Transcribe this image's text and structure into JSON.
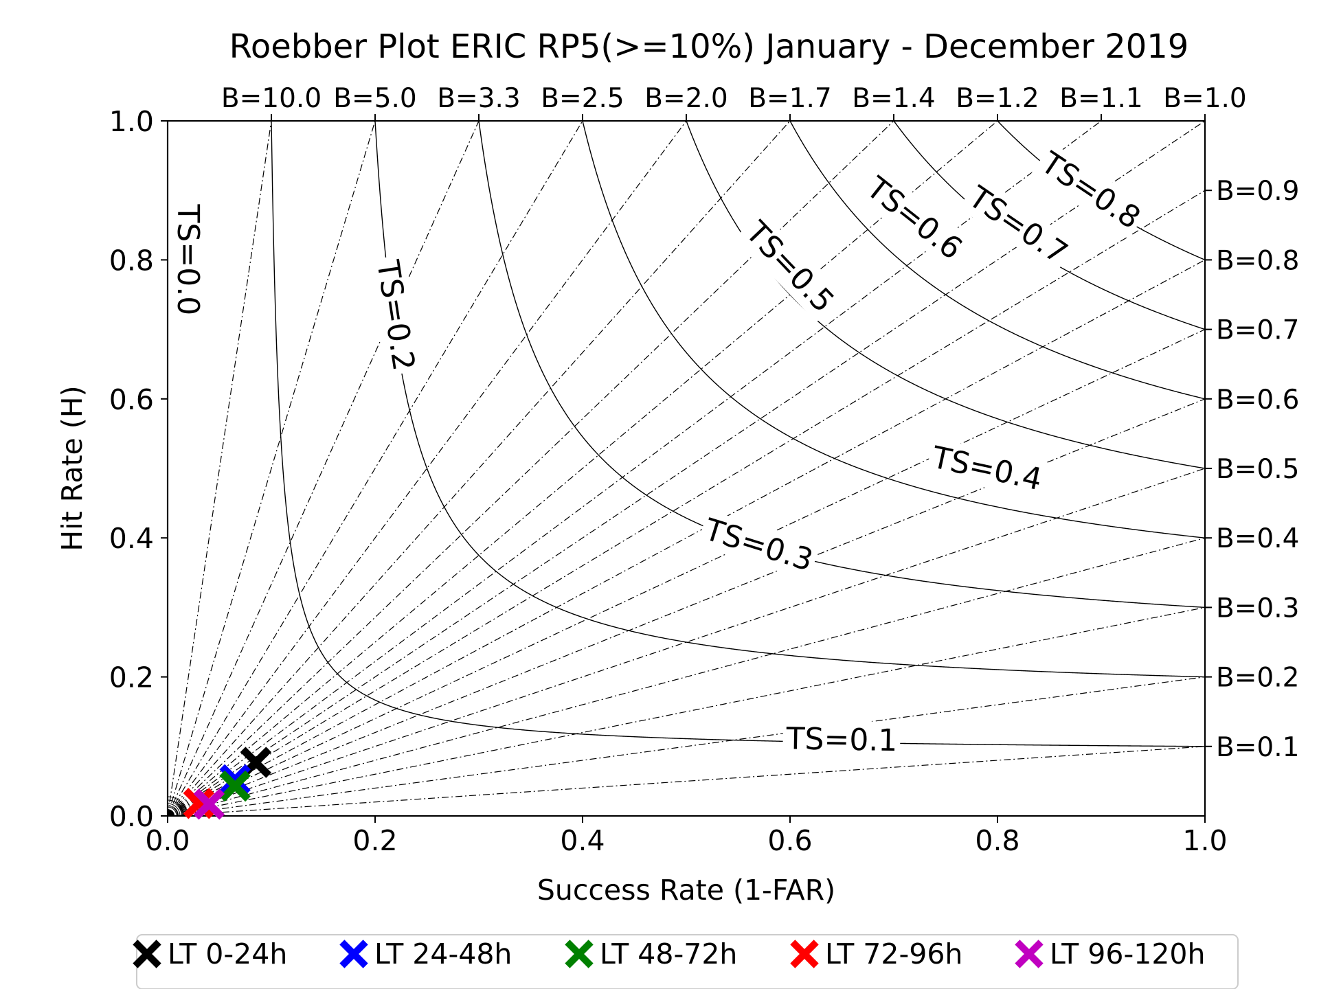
{
  "chart_data": {
    "type": "scatter",
    "title": "Roebber Plot ERIC RP5(>=10%) January - December 2019",
    "xlabel": "Success Rate (1-FAR)",
    "ylabel": "Hit Rate (H)",
    "xlim": [
      0,
      1
    ],
    "ylim": [
      0,
      1
    ],
    "x_ticks": [
      "0.0",
      "0.2",
      "0.4",
      "0.6",
      "0.8",
      "1.0"
    ],
    "y_ticks": [
      "0.0",
      "0.2",
      "0.4",
      "0.6",
      "0.8",
      "1.0"
    ],
    "bias_lines": {
      "top": [
        {
          "label": "B=10.0",
          "value": 10.0
        },
        {
          "label": "B=5.0",
          "value": 5.0
        },
        {
          "label": "B=3.3",
          "value": 3.3333
        },
        {
          "label": "B=2.5",
          "value": 2.5
        },
        {
          "label": "B=2.0",
          "value": 2.0
        },
        {
          "label": "B=1.7",
          "value": 1.6667
        },
        {
          "label": "B=1.4",
          "value": 1.4286
        },
        {
          "label": "B=1.2",
          "value": 1.25
        },
        {
          "label": "B=1.1",
          "value": 1.1111
        },
        {
          "label": "B=1.0",
          "value": 1.0
        }
      ],
      "right": [
        {
          "label": "B=0.9",
          "value": 0.9
        },
        {
          "label": "B=0.8",
          "value": 0.8
        },
        {
          "label": "B=0.7",
          "value": 0.7
        },
        {
          "label": "B=0.6",
          "value": 0.6
        },
        {
          "label": "B=0.5",
          "value": 0.5
        },
        {
          "label": "B=0.4",
          "value": 0.4
        },
        {
          "label": "B=0.3",
          "value": 0.3
        },
        {
          "label": "B=0.2",
          "value": 0.2
        },
        {
          "label": "B=0.1",
          "value": 0.1
        }
      ]
    },
    "ts_contours": [
      {
        "label": "TS=0.0",
        "value": 0.0,
        "label_at": [
          0.02,
          0.8
        ]
      },
      {
        "label": "TS=0.1",
        "value": 0.1,
        "label_at": [
          0.65,
          0.11
        ]
      },
      {
        "label": "TS=0.2",
        "value": 0.2,
        "label_at": [
          0.22,
          0.72
        ]
      },
      {
        "label": "TS=0.3",
        "value": 0.3,
        "label_at": [
          0.57,
          0.39
        ]
      },
      {
        "label": "TS=0.4",
        "value": 0.4,
        "label_at": [
          0.79,
          0.5
        ]
      },
      {
        "label": "TS=0.5",
        "value": 0.5,
        "label_at": [
          0.6,
          0.79
        ]
      },
      {
        "label": "TS=0.6",
        "value": 0.6,
        "label_at": [
          0.72,
          0.86
        ]
      },
      {
        "label": "TS=0.7",
        "value": 0.7,
        "label_at": [
          0.82,
          0.85
        ]
      },
      {
        "label": "TS=0.8",
        "value": 0.8,
        "label_at": [
          0.89,
          0.9
        ]
      }
    ],
    "series": [
      {
        "name": "LT 0-24h",
        "color": "#000000",
        "x": [
          0.085
        ],
        "y": [
          0.077
        ],
        "marker": "X"
      },
      {
        "name": "LT 24-48h",
        "color": "#0000ff",
        "x": [
          0.065
        ],
        "y": [
          0.052
        ],
        "marker": "X"
      },
      {
        "name": "LT 48-72h",
        "color": "#008000",
        "x": [
          0.065
        ],
        "y": [
          0.043
        ],
        "marker": "X"
      },
      {
        "name": "LT 72-96h",
        "color": "#ff0000",
        "x": [
          0.03
        ],
        "y": [
          0.018
        ],
        "marker": "X"
      },
      {
        "name": "LT 96-120h",
        "color": "#c000c0",
        "x": [
          0.04
        ],
        "y": [
          0.017
        ],
        "marker": "X"
      }
    ],
    "legend": {
      "position": "bottom",
      "orientation": "horizontal"
    },
    "grid": false
  }
}
